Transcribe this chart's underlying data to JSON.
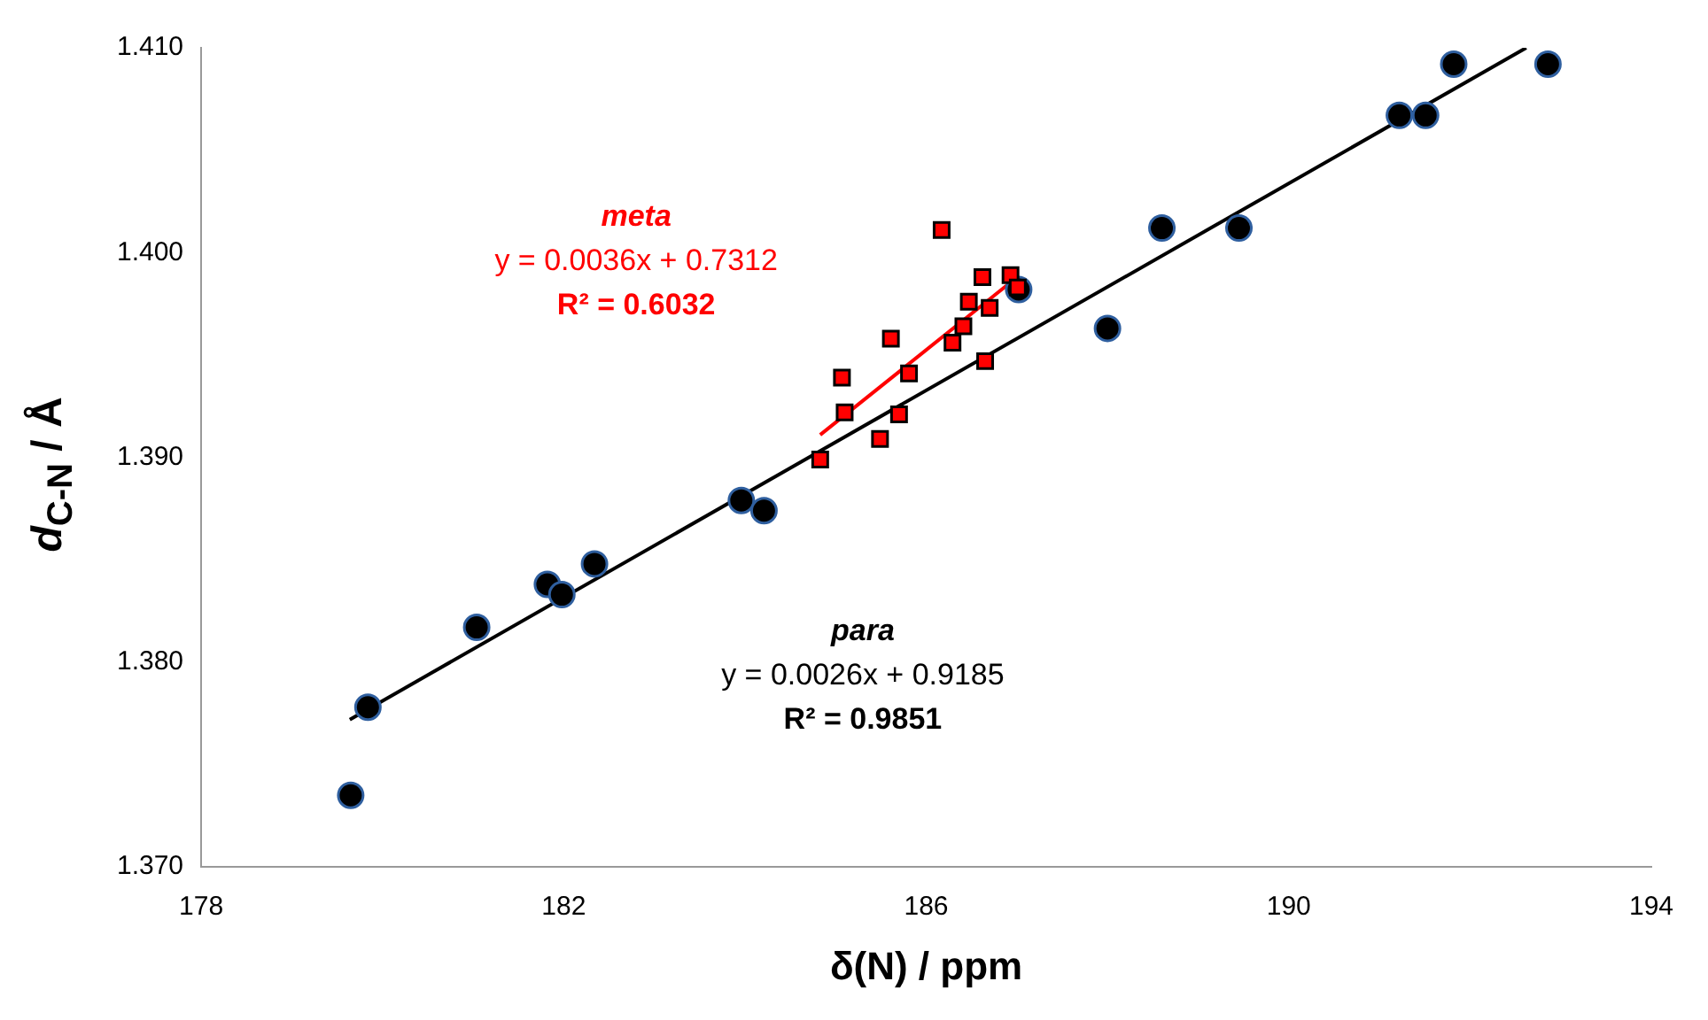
{
  "chart_data": {
    "type": "scatter",
    "xlabel": "δ(N) / ppm",
    "ylabel": "d$_{C-N}$ / Å",
    "xlim": [
      178,
      194
    ],
    "xticks": [
      178,
      182,
      186,
      190,
      194
    ],
    "ylim": [
      1.37,
      1.41
    ],
    "yticks": [
      {
        "value": 1.37,
        "label": "1.370"
      },
      {
        "value": 1.38,
        "label": "1.380"
      },
      {
        "value": 1.39,
        "label": "1.390"
      },
      {
        "value": 1.4,
        "label": "1.400"
      },
      {
        "value": 1.41,
        "label": "1.410"
      }
    ],
    "grid": false,
    "legend": false,
    "series": [
      {
        "type": "scatter",
        "marker": "circle",
        "color": "#000000",
        "x": [
          179.65,
          179.84,
          181.04,
          181.82,
          181.98,
          182.34,
          183.96,
          184.21,
          187.02,
          188.0,
          188.6,
          189.45,
          191.22,
          191.51,
          191.82,
          192.86
        ],
        "values": [
          1.3735,
          1.3778,
          1.3817,
          1.3838,
          1.3833,
          1.3848,
          1.3879,
          1.3874,
          1.3982,
          1.3963,
          1.4012,
          1.4012,
          1.4067,
          1.4067,
          1.4092,
          1.4092
        ]
      },
      {
        "type": "scatter",
        "marker": "square",
        "color": "#ff0000",
        "x": [
          184.83,
          185.07,
          185.1,
          185.49,
          185.61,
          185.7,
          185.81,
          186.17,
          186.29,
          186.41,
          186.47,
          186.62,
          186.65,
          186.7,
          186.93,
          187.01
        ],
        "values": [
          1.3899,
          1.3939,
          1.3922,
          1.3909,
          1.3958,
          1.3921,
          1.3941,
          1.4011,
          1.3956,
          1.3964,
          1.3976,
          1.3988,
          1.3947,
          1.3973,
          1.3989,
          1.3983
        ]
      },
      {
        "type": "line",
        "marker": "none",
        "color": "#000000",
        "x": [
          179.64,
          192.62
        ],
        "values": [
          1.3772,
          1.41
        ]
      },
      {
        "type": "line",
        "marker": "none",
        "color": "#ff0000",
        "x": [
          184.83,
          186.89
        ],
        "values": [
          1.3911,
          1.3984
        ]
      }
    ],
    "annotations": [
      "meta",
      "y = 0.0036x + 0.7312",
      "R² = 0.6032",
      "para",
      "y = 0.0026x + 0.9185",
      "R² = 0.9851"
    ]
  }
}
